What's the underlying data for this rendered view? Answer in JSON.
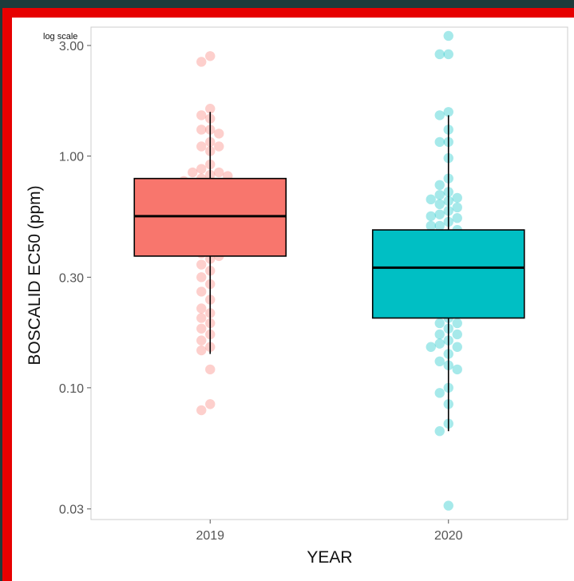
{
  "annotation": "log scale",
  "chart_data": {
    "type": "boxplot",
    "title": "",
    "xlabel": "YEAR",
    "ylabel": "BOSCALID EC50 (ppm)",
    "y_scale": "log",
    "ylim": [
      0.027,
      3.6
    ],
    "y_ticks": [
      0.03,
      0.1,
      0.3,
      1.0,
      3.0
    ],
    "y_tick_labels": [
      "0.03",
      "0.10",
      "0.30",
      "1.00",
      "3.00"
    ],
    "grid": false,
    "legend": "none",
    "categories": [
      "2019",
      "2020"
    ],
    "boxes": [
      {
        "category": "2019",
        "color": "#F8766D",
        "whisker_low": 0.14,
        "q1": 0.37,
        "median": 0.55,
        "q3": 0.8,
        "whisker_high": 1.55,
        "points": [
          2.7,
          2.55,
          1.6,
          1.5,
          1.45,
          1.3,
          1.3,
          1.25,
          1.15,
          1.1,
          1.1,
          1.05,
          0.92,
          0.88,
          0.85,
          0.85,
          0.83,
          0.82,
          0.8,
          0.78,
          0.75,
          0.72,
          0.7,
          0.68,
          0.65,
          0.62,
          0.6,
          0.58,
          0.56,
          0.54,
          0.52,
          0.5,
          0.48,
          0.46,
          0.44,
          0.42,
          0.4,
          0.38,
          0.37,
          0.36,
          0.34,
          0.32,
          0.3,
          0.28,
          0.26,
          0.24,
          0.22,
          0.21,
          0.2,
          0.19,
          0.18,
          0.17,
          0.16,
          0.15,
          0.145,
          0.12,
          0.085,
          0.08
        ]
      },
      {
        "category": "2020",
        "color": "#00BFC4",
        "whisker_low": 0.065,
        "q1": 0.2,
        "median": 0.33,
        "q3": 0.48,
        "whisker_high": 1.5,
        "points": [
          3.3,
          2.75,
          2.75,
          1.55,
          1.5,
          1.3,
          1.15,
          1.15,
          0.98,
          0.8,
          0.75,
          0.7,
          0.68,
          0.66,
          0.65,
          0.64,
          0.62,
          0.6,
          0.58,
          0.56,
          0.55,
          0.54,
          0.52,
          0.5,
          0.5,
          0.48,
          0.46,
          0.45,
          0.44,
          0.42,
          0.4,
          0.39,
          0.38,
          0.37,
          0.37,
          0.36,
          0.35,
          0.34,
          0.33,
          0.32,
          0.31,
          0.3,
          0.29,
          0.28,
          0.27,
          0.26,
          0.25,
          0.24,
          0.23,
          0.22,
          0.21,
          0.2,
          0.19,
          0.19,
          0.18,
          0.17,
          0.17,
          0.16,
          0.155,
          0.15,
          0.15,
          0.14,
          0.13,
          0.125,
          0.12,
          0.1,
          0.095,
          0.085,
          0.07,
          0.065,
          0.031
        ]
      }
    ]
  }
}
